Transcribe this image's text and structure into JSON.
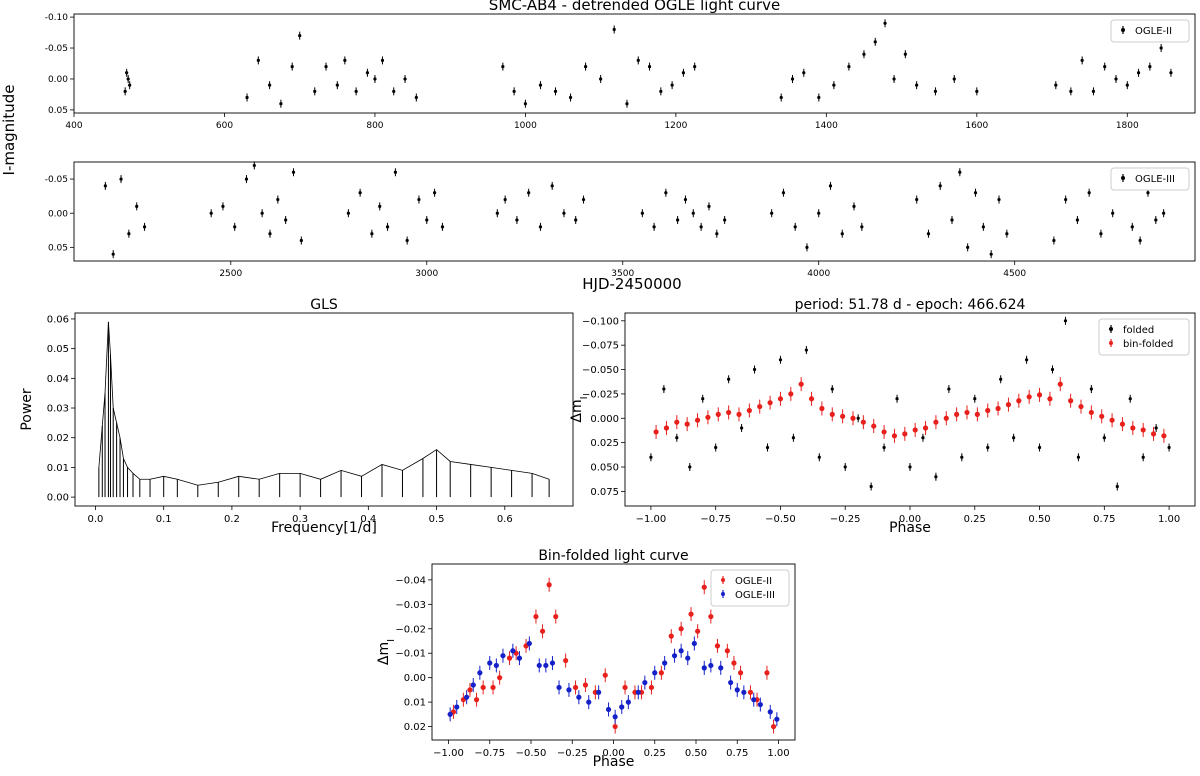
{
  "figure": {
    "ylabel_top": "I-magnitude",
    "xlabel_top": "HJD-2450000"
  },
  "chart_data": [
    {
      "id": "ogle2",
      "type": "scatter",
      "title": "SMC-AB4 - detrended OGLE light curve",
      "xlabel": "",
      "ylabel": "",
      "xlim": [
        400,
        1890
      ],
      "ylim": [
        0.055,
        -0.105
      ],
      "xticks": [
        400,
        600,
        800,
        1000,
        1200,
        1400,
        1600,
        1800
      ],
      "xtick_labels": [
        "400",
        "600",
        "800",
        "1000",
        "1200",
        "1400",
        "1600",
        "1800"
      ],
      "yticks": [
        -0.1,
        -0.05,
        0.0,
        0.05
      ],
      "ytick_labels": [
        "-0.10",
        "-0.05",
        "0.00",
        "0.05"
      ],
      "legend": {
        "position": "top-right",
        "entries": [
          {
            "label": "OGLE-II",
            "color": "#000000"
          }
        ]
      },
      "series": [
        {
          "name": "OGLE-II",
          "color": "#000000",
          "x": [
            468,
            470,
            472,
            474,
            630,
            645,
            660,
            675,
            690,
            700,
            720,
            735,
            750,
            760,
            775,
            790,
            800,
            810,
            825,
            840,
            855,
            970,
            985,
            1000,
            1020,
            1040,
            1060,
            1080,
            1100,
            1118,
            1135,
            1150,
            1165,
            1180,
            1195,
            1210,
            1225,
            1340,
            1355,
            1370,
            1390,
            1410,
            1430,
            1450,
            1465,
            1478,
            1490,
            1505,
            1520,
            1545,
            1570,
            1600,
            1705,
            1725,
            1740,
            1755,
            1770,
            1785,
            1800,
            1815,
            1830,
            1845,
            1858
          ],
          "y": [
            0.02,
            -0.01,
            0.0,
            0.01,
            0.03,
            -0.03,
            0.01,
            0.04,
            -0.02,
            -0.07,
            0.02,
            -0.02,
            0.01,
            -0.03,
            0.02,
            -0.01,
            0.0,
            -0.03,
            0.02,
            0.0,
            0.03,
            -0.02,
            0.02,
            0.04,
            0.01,
            0.02,
            0.03,
            -0.02,
            0.0,
            -0.08,
            0.04,
            -0.03,
            -0.02,
            0.02,
            0.01,
            -0.01,
            -0.02,
            0.03,
            0.0,
            -0.01,
            0.03,
            0.01,
            -0.02,
            -0.04,
            -0.06,
            -0.09,
            0.0,
            -0.04,
            0.01,
            0.02,
            0.0,
            0.02,
            0.01,
            0.02,
            -0.03,
            0.02,
            -0.02,
            0.0,
            0.01,
            -0.01,
            -0.02,
            -0.05,
            -0.01
          ]
        }
      ]
    },
    {
      "id": "ogle3",
      "type": "scatter",
      "title": "",
      "xlabel": "HJD-2450000",
      "ylabel": "",
      "xlim": [
        2100,
        4960
      ],
      "ylim": [
        0.07,
        -0.075
      ],
      "xticks": [
        2500,
        3000,
        3500,
        4000,
        4500
      ],
      "xtick_labels": [
        "2500",
        "3000",
        "3500",
        "4000",
        "4500"
      ],
      "yticks": [
        -0.05,
        0.0,
        0.05
      ],
      "ytick_labels": [
        "-0.05",
        "0.00",
        "0.05"
      ],
      "legend": {
        "position": "top-right",
        "entries": [
          {
            "label": "OGLE-III",
            "color": "#000000"
          }
        ]
      },
      "series": [
        {
          "name": "OGLE-III",
          "color": "#000000",
          "x": [
            2180,
            2200,
            2220,
            2240,
            2260,
            2280,
            2450,
            2480,
            2510,
            2540,
            2560,
            2580,
            2600,
            2620,
            2640,
            2660,
            2680,
            2800,
            2830,
            2860,
            2880,
            2900,
            2920,
            2950,
            2980,
            3000,
            3020,
            3040,
            3180,
            3200,
            3230,
            3260,
            3290,
            3320,
            3350,
            3380,
            3400,
            3550,
            3580,
            3610,
            3640,
            3660,
            3680,
            3700,
            3720,
            3740,
            3760,
            3880,
            3910,
            3940,
            3970,
            4000,
            4030,
            4060,
            4090,
            4110,
            4250,
            4280,
            4310,
            4340,
            4360,
            4380,
            4400,
            4420,
            4440,
            4460,
            4480,
            4600,
            4630,
            4660,
            4690,
            4720,
            4750,
            4780,
            4800,
            4820,
            4840,
            4860,
            4880
          ],
          "y": [
            -0.04,
            0.06,
            -0.05,
            0.03,
            -0.01,
            0.02,
            0.0,
            -0.01,
            0.02,
            -0.05,
            -0.07,
            0.0,
            0.03,
            -0.02,
            0.01,
            -0.06,
            0.04,
            0.0,
            -0.03,
            0.03,
            -0.01,
            0.02,
            -0.06,
            0.04,
            -0.02,
            0.01,
            -0.03,
            0.02,
            0.0,
            -0.02,
            0.01,
            -0.03,
            0.02,
            -0.04,
            0.0,
            0.01,
            -0.02,
            0.0,
            0.02,
            -0.03,
            0.01,
            -0.02,
            0.0,
            0.02,
            -0.01,
            0.03,
            0.01,
            0.0,
            -0.03,
            0.02,
            0.05,
            0.0,
            -0.04,
            0.03,
            -0.01,
            0.02,
            -0.02,
            0.03,
            -0.04,
            0.01,
            -0.06,
            0.05,
            -0.03,
            0.02,
            0.06,
            -0.02,
            0.03,
            0.04,
            -0.02,
            0.01,
            -0.03,
            0.03,
            0.0,
            -0.05,
            0.02,
            0.04,
            -0.03,
            0.01,
            0.0
          ]
        }
      ]
    },
    {
      "id": "gls",
      "type": "line",
      "title": "GLS",
      "xlabel": "Frequency[1/d]",
      "ylabel": "Power",
      "xlim": [
        -0.03,
        0.7
      ],
      "ylim": [
        -0.003,
        0.062
      ],
      "xticks": [
        0.0,
        0.1,
        0.2,
        0.3,
        0.4,
        0.5,
        0.6
      ],
      "xtick_labels": [
        "0.0",
        "0.1",
        "0.2",
        "0.3",
        "0.4",
        "0.5",
        "0.6"
      ],
      "yticks": [
        0.0,
        0.01,
        0.02,
        0.03,
        0.04,
        0.05,
        0.06
      ],
      "ytick_labels": [
        "0.00",
        "0.01",
        "0.02",
        "0.03",
        "0.04",
        "0.05",
        "0.06"
      ],
      "series": [
        {
          "name": "",
          "color": "#000000",
          "x": [
            0.005,
            0.01,
            0.014,
            0.019,
            0.022,
            0.026,
            0.031,
            0.036,
            0.041,
            0.047,
            0.055,
            0.065,
            0.08,
            0.1,
            0.12,
            0.15,
            0.18,
            0.21,
            0.24,
            0.27,
            0.3,
            0.33,
            0.36,
            0.39,
            0.42,
            0.45,
            0.48,
            0.5,
            0.52,
            0.55,
            0.58,
            0.61,
            0.64,
            0.665
          ],
          "y": [
            0.01,
            0.024,
            0.035,
            0.059,
            0.048,
            0.03,
            0.025,
            0.02,
            0.013,
            0.01,
            0.008,
            0.006,
            0.006,
            0.007,
            0.006,
            0.004,
            0.005,
            0.007,
            0.006,
            0.008,
            0.008,
            0.006,
            0.009,
            0.007,
            0.011,
            0.009,
            0.013,
            0.016,
            0.012,
            0.011,
            0.01,
            0.009,
            0.008,
            0.006
          ]
        }
      ]
    },
    {
      "id": "folded",
      "type": "scatter",
      "title": "period: 51.78 d - epoch: 466.624",
      "xlabel": "Phase",
      "ylabel": "Δm_I",
      "xlim": [
        -1.1,
        1.1
      ],
      "ylim": [
        0.09,
        -0.108
      ],
      "xticks": [
        -1.0,
        -0.75,
        -0.5,
        -0.25,
        0.0,
        0.25,
        0.5,
        0.75,
        1.0
      ],
      "xtick_labels": [
        "−1.00",
        "−0.75",
        "−0.50",
        "−0.25",
        "0.00",
        "0.25",
        "0.50",
        "0.75",
        "1.00"
      ],
      "yticks": [
        -0.1,
        -0.075,
        -0.05,
        -0.025,
        0.0,
        0.025,
        0.05,
        0.075
      ],
      "ytick_labels": [
        "−0.100",
        "−0.075",
        "−0.050",
        "−0.025",
        "0.000",
        "0.025",
        "0.050",
        "0.075"
      ],
      "legend": {
        "position": "top-right",
        "entries": [
          {
            "label": "folded",
            "color": "#000000"
          },
          {
            "label": "bin-folded",
            "color": "#e8201c"
          }
        ]
      },
      "series": [
        {
          "name": "folded",
          "color": "#000000",
          "x": [
            -1.0,
            -0.95,
            -0.9,
            -0.85,
            -0.8,
            -0.75,
            -0.7,
            -0.65,
            -0.6,
            -0.55,
            -0.5,
            -0.45,
            -0.4,
            -0.35,
            -0.3,
            -0.25,
            -0.2,
            -0.15,
            -0.1,
            -0.05,
            0.0,
            0.05,
            0.1,
            0.15,
            0.2,
            0.25,
            0.3,
            0.35,
            0.4,
            0.45,
            0.5,
            0.55,
            0.6,
            0.65,
            0.7,
            0.75,
            0.8,
            0.85,
            0.9,
            0.95,
            1.0
          ],
          "y": [
            0.04,
            -0.03,
            0.02,
            0.05,
            -0.02,
            0.03,
            -0.04,
            0.01,
            -0.05,
            0.03,
            -0.06,
            0.02,
            -0.07,
            0.04,
            -0.03,
            0.05,
            0.0,
            0.07,
            0.03,
            -0.02,
            0.05,
            0.02,
            0.06,
            -0.03,
            0.04,
            -0.02,
            0.03,
            -0.04,
            0.02,
            -0.06,
            0.03,
            -0.05,
            -0.1,
            0.04,
            -0.03,
            0.02,
            0.07,
            -0.02,
            0.04,
            0.01,
            0.03
          ]
        },
        {
          "name": "bin-folded",
          "color": "#e8201c",
          "x": [
            -0.98,
            -0.94,
            -0.9,
            -0.86,
            -0.82,
            -0.78,
            -0.74,
            -0.7,
            -0.66,
            -0.62,
            -0.58,
            -0.54,
            -0.5,
            -0.46,
            -0.42,
            -0.38,
            -0.34,
            -0.3,
            -0.26,
            -0.22,
            -0.18,
            -0.14,
            -0.1,
            -0.06,
            -0.02,
            0.02,
            0.06,
            0.1,
            0.14,
            0.18,
            0.22,
            0.26,
            0.3,
            0.34,
            0.38,
            0.42,
            0.46,
            0.5,
            0.54,
            0.58,
            0.62,
            0.66,
            0.7,
            0.74,
            0.78,
            0.82,
            0.86,
            0.9,
            0.94,
            0.98
          ],
          "y": [
            0.014,
            0.01,
            0.004,
            0.006,
            0.002,
            -0.001,
            -0.004,
            -0.006,
            -0.004,
            -0.008,
            -0.012,
            -0.016,
            -0.02,
            -0.025,
            -0.035,
            -0.02,
            -0.01,
            -0.004,
            -0.002,
            0.0,
            0.004,
            0.008,
            0.014,
            0.018,
            0.016,
            0.012,
            0.01,
            0.004,
            0.0,
            -0.004,
            -0.006,
            -0.004,
            -0.008,
            -0.01,
            -0.014,
            -0.018,
            -0.022,
            -0.024,
            -0.02,
            -0.035,
            -0.018,
            -0.012,
            -0.006,
            -0.002,
            0.002,
            0.006,
            0.01,
            0.012,
            0.016,
            0.018
          ]
        }
      ]
    },
    {
      "id": "binfold",
      "type": "scatter",
      "title": "Bin-folded light curve",
      "xlabel": "Phase",
      "ylabel": "Δm_I",
      "xlim": [
        -1.1,
        1.1
      ],
      "ylim": [
        0.0255,
        -0.0465
      ],
      "xticks": [
        -1.0,
        -0.75,
        -0.5,
        -0.25,
        0.0,
        0.25,
        0.5,
        0.75,
        1.0
      ],
      "xtick_labels": [
        "−1.00",
        "−0.75",
        "−0.50",
        "−0.25",
        "0.00",
        "0.25",
        "0.50",
        "0.75",
        "1.00"
      ],
      "yticks": [
        -0.04,
        -0.03,
        -0.02,
        -0.01,
        0.0,
        0.01,
        0.02
      ],
      "ytick_labels": [
        "−0.04",
        "−0.03",
        "−0.02",
        "−0.01",
        "0.00",
        "0.01",
        "0.02"
      ],
      "legend": {
        "position": "top-right",
        "entries": [
          {
            "label": "OGLE-II",
            "color": "#e8201c"
          },
          {
            "label": "OGLE-III",
            "color": "#1420c8"
          }
        ]
      },
      "series": [
        {
          "name": "OGLE-II",
          "color": "#e8201c",
          "x": [
            -0.97,
            -0.91,
            -0.87,
            -0.83,
            -0.79,
            -0.73,
            -0.69,
            -0.63,
            -0.59,
            -0.53,
            -0.47,
            -0.43,
            -0.39,
            -0.35,
            -0.29,
            -0.23,
            -0.17,
            -0.11,
            -0.05,
            0.01,
            0.07,
            0.13,
            0.17,
            0.23,
            0.29,
            0.35,
            0.41,
            0.47,
            0.51,
            0.55,
            0.59,
            0.63,
            0.69,
            0.73,
            0.77,
            0.83,
            0.87,
            0.93,
            0.97
          ],
          "y": [
            0.014,
            0.009,
            0.005,
            0.009,
            0.004,
            0.004,
            0.0,
            -0.008,
            -0.01,
            -0.013,
            -0.025,
            -0.019,
            -0.038,
            -0.025,
            -0.007,
            0.004,
            0.003,
            0.006,
            -0.001,
            0.02,
            0.004,
            0.006,
            0.006,
            0.004,
            -0.002,
            -0.017,
            -0.02,
            -0.026,
            -0.019,
            -0.037,
            -0.025,
            -0.013,
            -0.011,
            -0.006,
            -0.002,
            0.006,
            0.009,
            -0.002,
            0.02
          ]
        },
        {
          "name": "OGLE-III",
          "color": "#1420c8",
          "x": [
            -0.99,
            -0.95,
            -0.89,
            -0.85,
            -0.81,
            -0.75,
            -0.71,
            -0.67,
            -0.61,
            -0.57,
            -0.51,
            -0.45,
            -0.41,
            -0.37,
            -0.33,
            -0.27,
            -0.21,
            -0.15,
            -0.09,
            -0.03,
            0.01,
            0.05,
            0.09,
            0.15,
            0.19,
            0.25,
            0.31,
            0.37,
            0.41,
            0.45,
            0.49,
            0.55,
            0.59,
            0.65,
            0.71,
            0.75,
            0.79,
            0.85,
            0.89,
            0.95,
            0.99
          ],
          "y": [
            0.015,
            0.012,
            0.008,
            0.003,
            -0.002,
            -0.006,
            -0.005,
            -0.009,
            -0.011,
            -0.008,
            -0.014,
            -0.005,
            -0.005,
            -0.006,
            0.004,
            0.005,
            0.008,
            0.01,
            0.006,
            0.013,
            0.016,
            0.012,
            0.01,
            0.006,
            0.002,
            -0.002,
            -0.006,
            -0.009,
            -0.011,
            -0.008,
            -0.014,
            -0.004,
            -0.005,
            -0.004,
            0.002,
            0.005,
            0.006,
            0.009,
            0.011,
            0.014,
            0.017
          ]
        }
      ]
    }
  ]
}
